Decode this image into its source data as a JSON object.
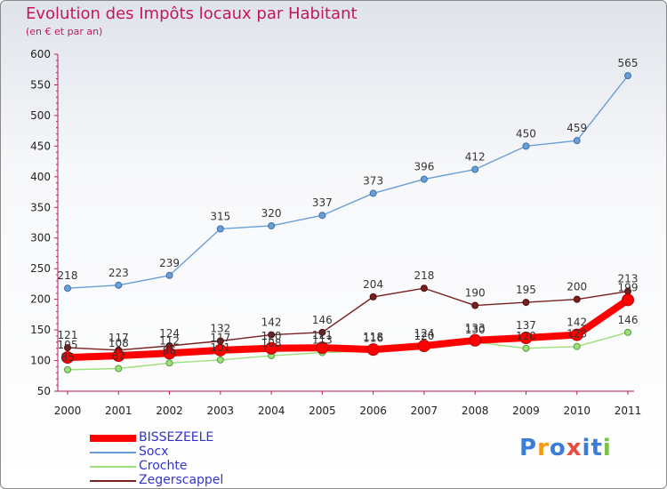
{
  "chart_data": {
    "type": "line",
    "title": "Evolution des Impôts locaux par Habitant",
    "subtitle": "(en € et par an)",
    "x": [
      "2000",
      "2001",
      "2002",
      "2003",
      "2004",
      "2005",
      "2006",
      "2007",
      "2008",
      "2009",
      "2010",
      "2011"
    ],
    "ylim": [
      50,
      600
    ],
    "yticks": [
      50,
      100,
      150,
      200,
      250,
      300,
      350,
      400,
      450,
      500,
      550,
      600
    ],
    "grid": false,
    "legend_position": "bottom-left",
    "series": [
      {
        "name": "BISSEZEELE",
        "color": "#ff0000",
        "values": [
          105,
          108,
          112,
          117,
          120,
          121,
          118,
          124,
          133,
          137,
          142,
          199
        ],
        "labels": [
          "105",
          "108",
          "112",
          "117",
          "120",
          "121",
          "118",
          "124",
          "133",
          "137",
          "142",
          "199"
        ]
      },
      {
        "name": "Socx",
        "color": "#6a9ed6",
        "values": [
          218,
          223,
          239,
          315,
          320,
          337,
          373,
          396,
          412,
          450,
          459,
          565
        ],
        "labels": [
          "218",
          "223",
          "239",
          "315",
          "320",
          "337",
          "373",
          "396",
          "412",
          "450",
          "459",
          "565"
        ]
      },
      {
        "name": "Crochte",
        "color": "#9be07a",
        "values": [
          85,
          87,
          96,
          101,
          108,
          113,
          116,
          120,
          130,
          120,
          123,
          146
        ],
        "labels": [
          "85",
          "87",
          "96",
          "101",
          "108",
          "113",
          "116",
          "120",
          "130",
          "120",
          "123",
          "146"
        ]
      },
      {
        "name": "Zegerscappel",
        "color": "#7a2020",
        "values": [
          121,
          117,
          124,
          132,
          142,
          146,
          204,
          218,
          190,
          195,
          200,
          213
        ],
        "labels": [
          "121",
          "117",
          "124",
          "132",
          "142",
          "146",
          "204",
          "218",
          "190",
          "195",
          "200",
          "213"
        ]
      }
    ]
  },
  "logo": {
    "text": "Proxiti",
    "letters": [
      "P",
      "r",
      "o",
      "x",
      "i",
      "t",
      "i"
    ],
    "colors": [
      "#3b7dd8",
      "#f39c12",
      "#3b7dd8",
      "#e74c3c",
      "#3b7dd8",
      "#3b7dd8",
      "#7cc242"
    ]
  }
}
